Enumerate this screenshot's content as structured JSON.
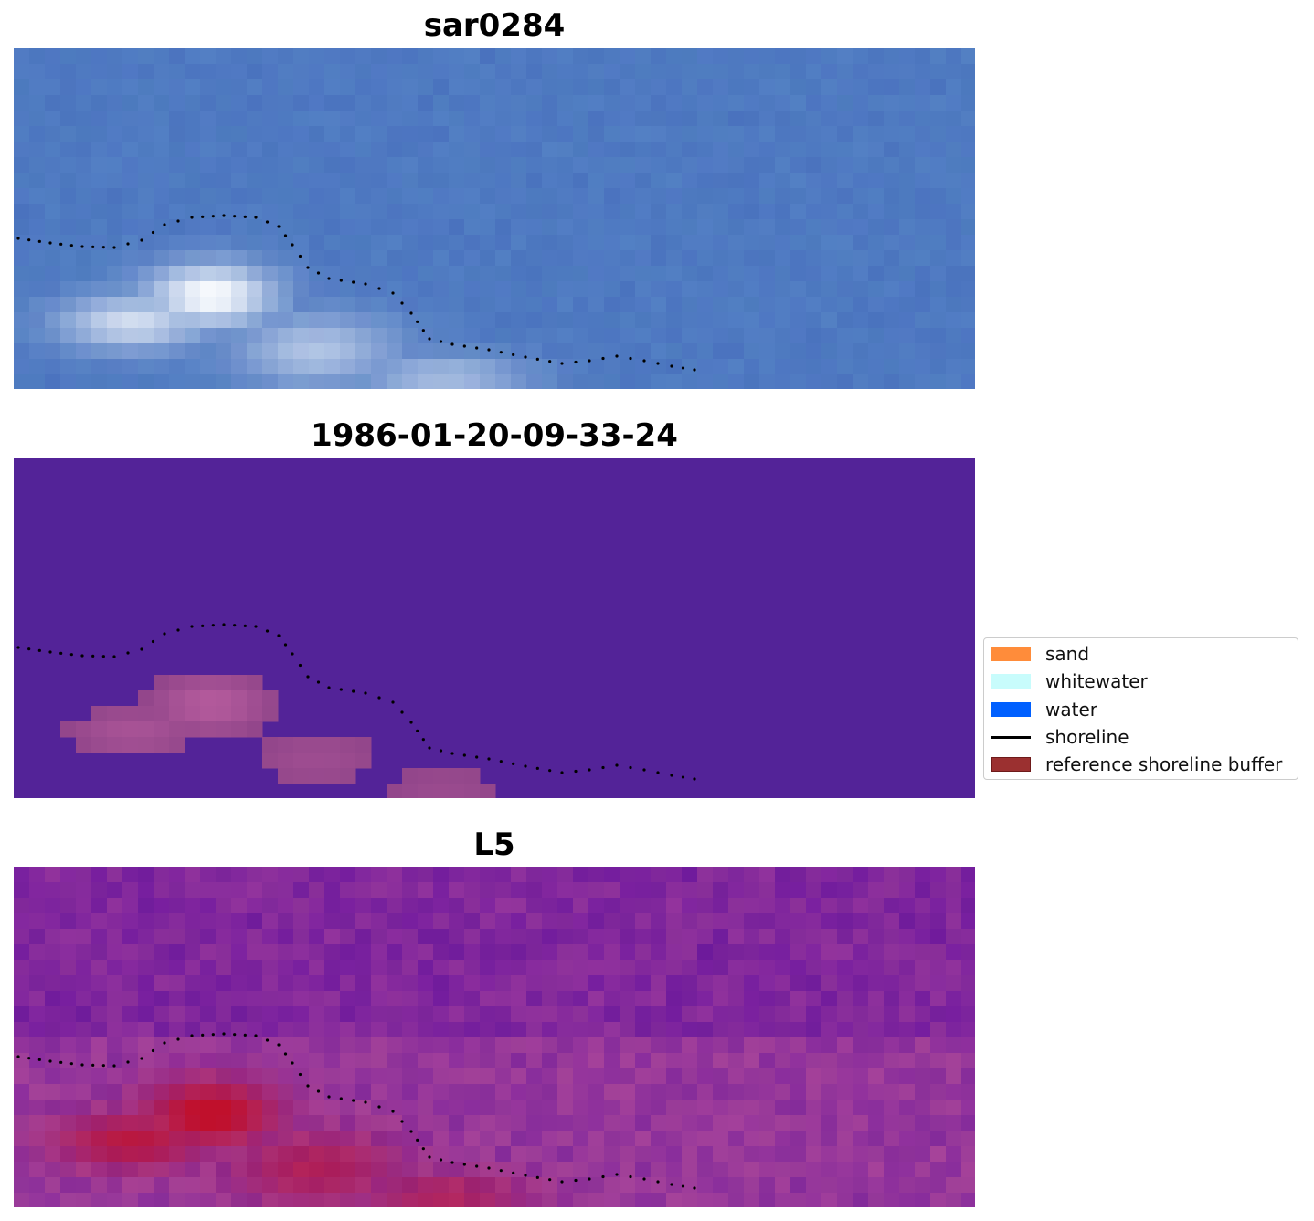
{
  "panels": [
    {
      "title": "sar0284",
      "kind": "rgb"
    },
    {
      "title": "1986-01-20-09-33-24",
      "kind": "classification"
    },
    {
      "title": "L5",
      "kind": "index"
    }
  ],
  "legend": {
    "items": [
      {
        "label": "sand",
        "color": "#ff8c3a",
        "type": "patch"
      },
      {
        "label": "whitewater",
        "color": "#c8fcfc",
        "type": "patch"
      },
      {
        "label": "water",
        "color": "#0060ff",
        "type": "patch"
      },
      {
        "label": "shoreline",
        "color": "#000000",
        "type": "line"
      },
      {
        "label": "reference shoreline buffer",
        "color": "#9b3030",
        "type": "patch"
      }
    ]
  },
  "colors": {
    "classification_background": "#532398",
    "buffer": "#b45a9c",
    "rgb_base": "#4a72be",
    "index_base": "#7a20a0",
    "index_hot": "#c0102c"
  }
}
